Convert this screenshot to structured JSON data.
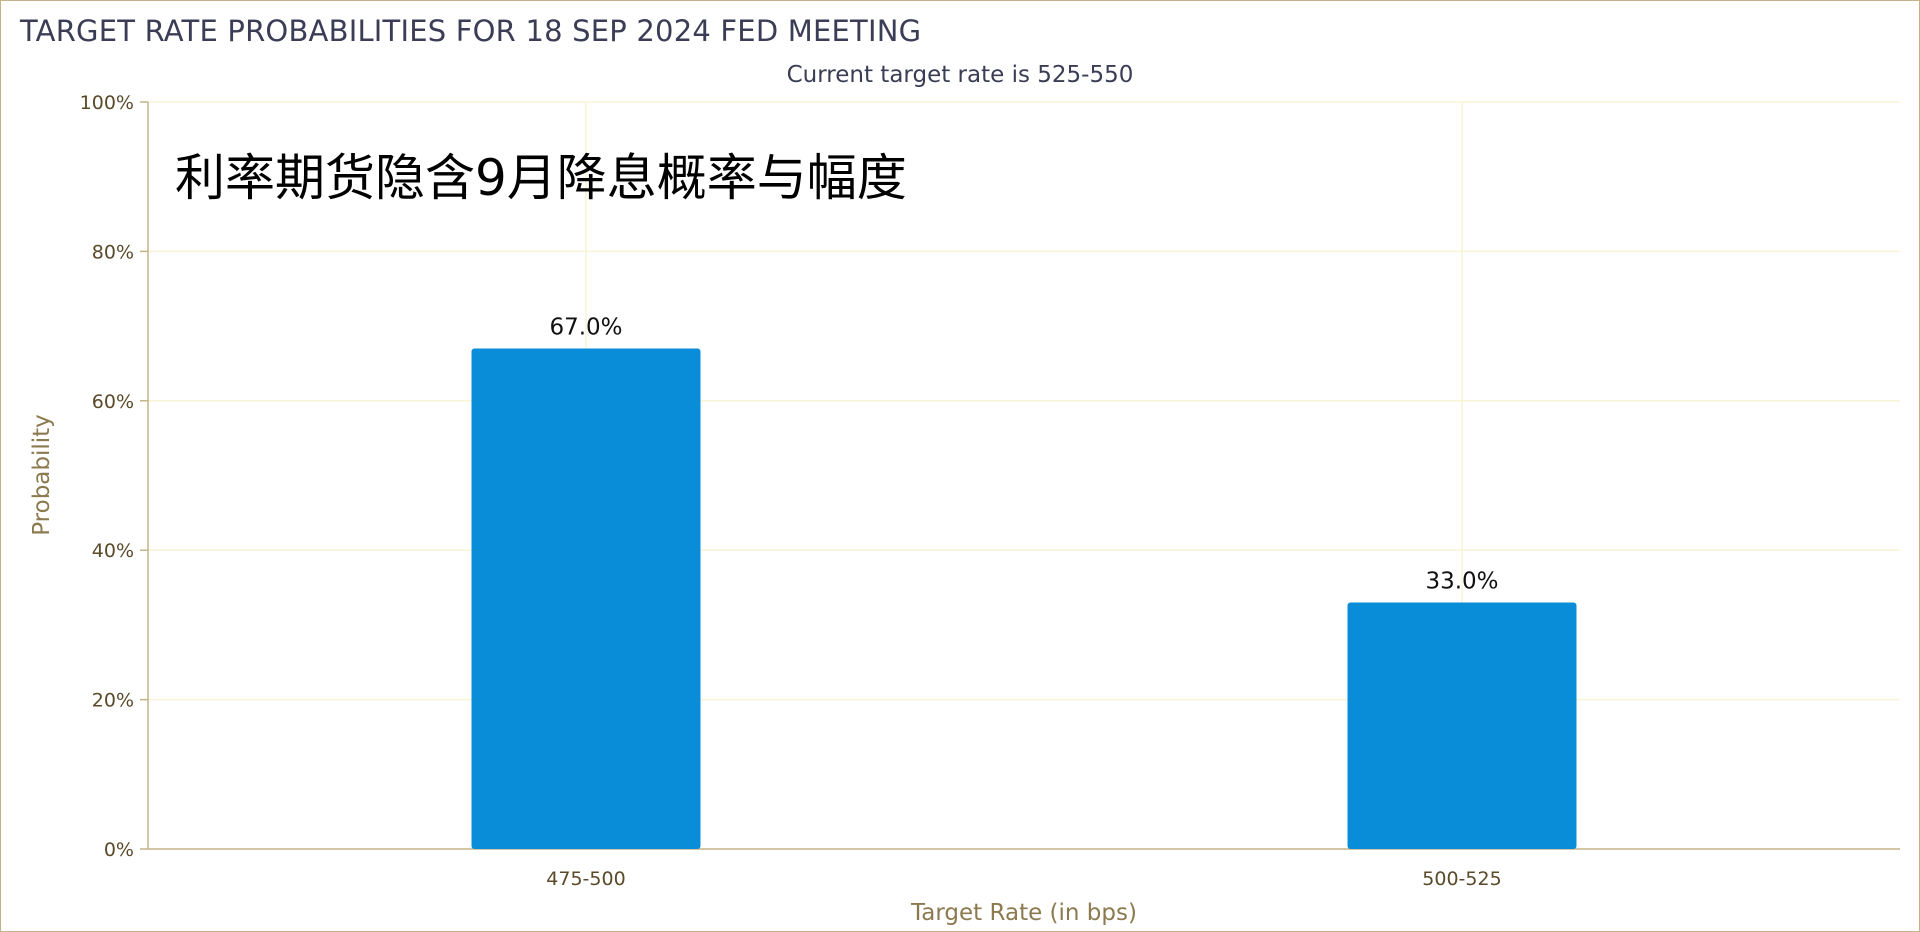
{
  "chart_data": {
    "type": "bar",
    "title": "TARGET RATE PROBABILITIES FOR 18 SEP 2024 FED MEETING",
    "subtitle": "Current target rate is 525-550",
    "annotation": "利率期货隐含9月降息概率与幅度",
    "xlabel": "Target Rate (in bps)",
    "ylabel": "Probability",
    "categories": [
      "475-500",
      "500-525"
    ],
    "values": [
      67.0,
      33.0
    ],
    "data_labels": [
      "67.0%",
      "33.0%"
    ],
    "ylim": [
      0,
      100
    ],
    "yticks": [
      0,
      20,
      40,
      60,
      80,
      100
    ],
    "ytick_labels": [
      "0%",
      "20%",
      "40%",
      "60%",
      "80%",
      "100%"
    ],
    "grid": true,
    "legend": "none",
    "colors": {
      "bar": "#0a8dd8",
      "grid": "#fbf3d6",
      "axis": "#c4b389",
      "frame": "#c4b389"
    }
  }
}
